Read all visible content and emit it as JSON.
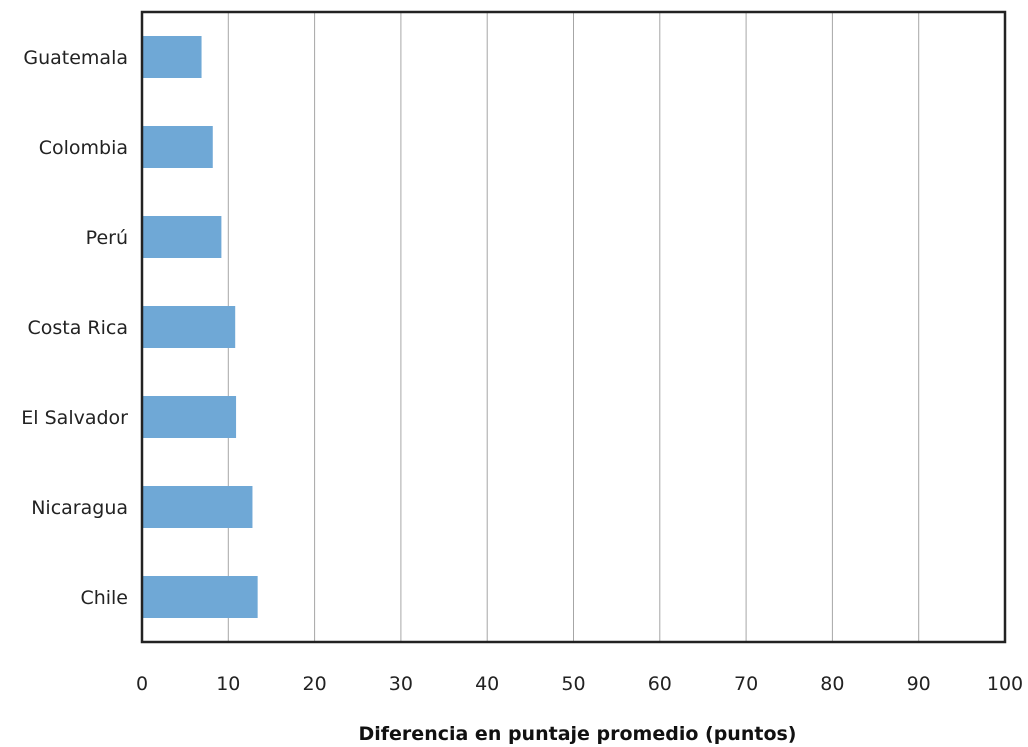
{
  "chart_data": {
    "type": "bar",
    "orientation": "horizontal",
    "categories": [
      "Guatemala",
      "Colombia",
      "Perú",
      "Costa Rica",
      "El Salvador",
      "Nicaragua",
      "Chile"
    ],
    "values": [
      6.9,
      8.2,
      9.2,
      10.8,
      10.9,
      12.8,
      13.4
    ],
    "xlabel": "Diferencia en puntaje promedio (puntos)",
    "ylabel": "",
    "xlim": [
      0,
      100
    ],
    "xticks": [
      "0",
      "10",
      "20",
      "30",
      "40",
      "50",
      "60",
      "70",
      "80",
      "90",
      "100"
    ],
    "grid": "vertical",
    "legend": "none",
    "bar_color": "#6fa8d6",
    "grid_color": "#a6a6a6",
    "frame_color": "#222222"
  }
}
